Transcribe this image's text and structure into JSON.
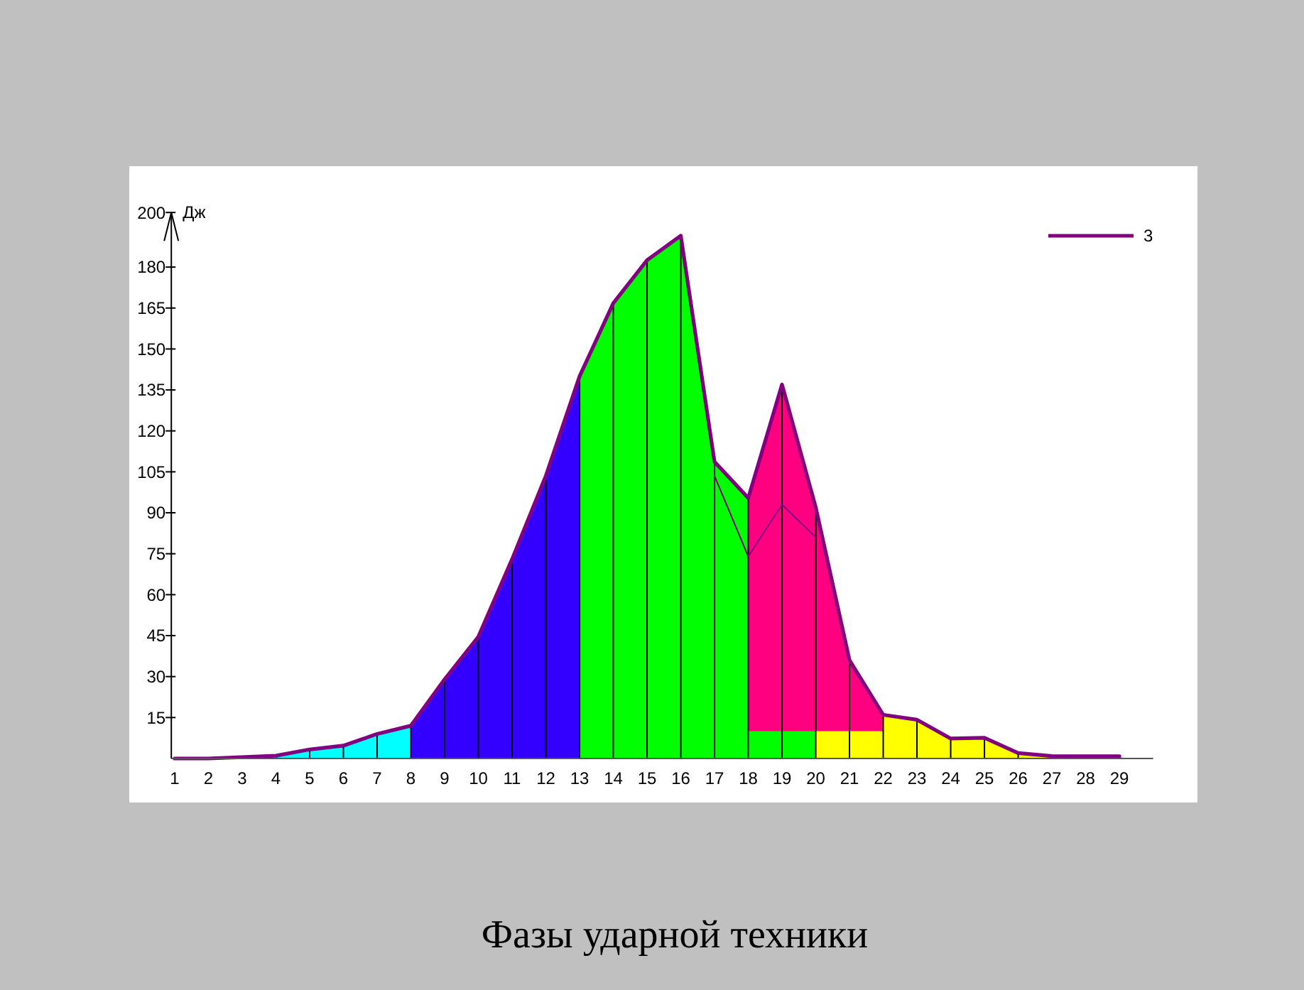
{
  "chart_data": {
    "type": "area",
    "title": "Фазы ударной техники",
    "ylabel": "Дж",
    "xlim": [
      0.9,
      30
    ],
    "xticks": [
      1,
      2,
      3,
      4,
      5,
      6,
      7,
      8,
      9,
      10,
      11,
      12,
      13,
      14,
      15,
      16,
      17,
      18,
      19,
      20,
      21,
      22,
      23,
      24,
      25,
      26,
      27,
      28,
      29
    ],
    "ylim": [
      0,
      200
    ],
    "yticks": [
      15,
      30,
      45,
      60,
      75,
      90,
      105,
      120,
      135,
      150,
      165,
      180,
      200
    ],
    "grid": "x",
    "legend": "top right",
    "series": [
      {
        "color": "#00ffff",
        "x": [
          4,
          5,
          6,
          7,
          8
        ],
        "values": [
          1,
          3.3,
          4.7,
          9,
          12
        ]
      },
      {
        "color": "#3300ff",
        "x": [
          8,
          9,
          10,
          11,
          12,
          13
        ],
        "values": [
          12,
          29,
          44.6,
          73,
          103.5,
          140
        ]
      },
      {
        "color": "#00ff00",
        "x": [
          13,
          14,
          15,
          16,
          17,
          18
        ],
        "values": [
          140,
          166.8,
          182.5,
          191.5,
          108.7,
          95.4
        ]
      },
      {
        "color": "#ff0080",
        "x": [
          18,
          19,
          20,
          21,
          22
        ],
        "values": [
          95.4,
          137,
          92,
          36,
          16
        ]
      },
      {
        "color": "#00ff00",
        "x": [
          18,
          19,
          20
        ],
        "values": [
          10,
          10,
          10
        ]
      },
      {
        "color": "#ffff00",
        "x": [
          20,
          21,
          22
        ],
        "values": [
          10,
          10,
          10
        ]
      },
      {
        "color": "#ffff00",
        "x": [
          22,
          23,
          24,
          25,
          26,
          27
        ],
        "values": [
          16,
          14.2,
          7.3,
          7.6,
          2,
          0.9
        ]
      },
      {
        "type": "line",
        "color": "#800080",
        "x": [
          17,
          18,
          19,
          20
        ],
        "values": [
          103.5,
          74,
          93,
          81
        ]
      },
      {
        "type": "line",
        "name": "3",
        "color": "#800080",
        "x": [
          1,
          2,
          3,
          4,
          5,
          6,
          7,
          8,
          9,
          10,
          11,
          12,
          13,
          14,
          15,
          16,
          17,
          18,
          19,
          20,
          21,
          22,
          23,
          24,
          25,
          26,
          27,
          28,
          29
        ],
        "values": [
          0,
          0,
          0.5,
          1,
          3.3,
          4.7,
          9,
          12,
          29,
          44.6,
          73,
          103.5,
          140,
          166.8,
          182.5,
          191.5,
          108.7,
          95.4,
          137,
          92,
          36,
          16,
          14.2,
          7.3,
          7.6,
          2,
          0.9,
          0.8,
          0.8
        ]
      }
    ]
  }
}
